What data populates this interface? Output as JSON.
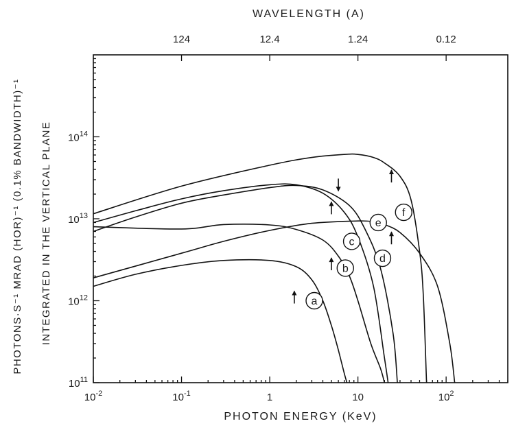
{
  "chart_data": {
    "type": "line",
    "title": "",
    "xlabel": "PHOTON ENERGY (KeV)",
    "ylabel_line1": "PHOTONS·S⁻¹ MRAD (HOR)⁻¹ (0.1% BANDWIDTH)⁻¹",
    "ylabel_line2": "INTEGRATED IN THE VERTICAL PLANE",
    "top_axis_label": "WAVELENGTH (A)",
    "x_scale": "log",
    "y_scale": "log",
    "xlim": [
      0.01,
      500
    ],
    "ylim": [
      100000000000.0,
      1000000000000000.0
    ],
    "grid": false,
    "x_ticks": [
      {
        "value": 0.01,
        "base": "10",
        "exp": "-2"
      },
      {
        "value": 0.1,
        "base": "10",
        "exp": "-1"
      },
      {
        "value": 1,
        "base": "1",
        "exp": ""
      },
      {
        "value": 10,
        "base": "10",
        "exp": ""
      },
      {
        "value": 100,
        "base": "10",
        "exp": "2"
      }
    ],
    "y_ticks": [
      {
        "value": 100000000000.0,
        "base": "10",
        "exp": "11"
      },
      {
        "value": 1000000000000.0,
        "base": "10",
        "exp": "12"
      },
      {
        "value": 10000000000000.0,
        "base": "10",
        "exp": "13"
      },
      {
        "value": 100000000000000.0,
        "base": "10",
        "exp": "14"
      }
    ],
    "top_ticks": [
      {
        "energy": 0.1,
        "label": "124"
      },
      {
        "energy": 1,
        "label": "12.4"
      },
      {
        "energy": 10,
        "label": "1.24"
      },
      {
        "energy": 100,
        "label": "0.12"
      }
    ],
    "series": [
      {
        "name": "a",
        "x": [
          0.01,
          0.03,
          0.1,
          0.3,
          1,
          2,
          3,
          4,
          5,
          6,
          7,
          7.5
        ],
        "y": [
          1500000000000.0,
          2100000000000.0,
          2700000000000.0,
          3100000000000.0,
          3100000000000.0,
          2600000000000.0,
          1800000000000.0,
          1000000000000.0,
          500000000000.0,
          250000000000.0,
          130000000000.0,
          100000000000.0
        ],
        "label_at": [
          3.2,
          1000000000000.0
        ],
        "arrow_at": [
          1.9,
          1100000000000.0
        ]
      },
      {
        "name": "b",
        "x": [
          0.01,
          0.1,
          0.3,
          1,
          2,
          4,
          6,
          8,
          10,
          14,
          18,
          20
        ],
        "y": [
          8000000000000.0,
          7500000000000.0,
          8500000000000.0,
          8400000000000.0,
          7400000000000.0,
          5500000000000.0,
          3500000000000.0,
          2000000000000.0,
          1000000000000.0,
          300000000000.0,
          150000000000.0,
          100000000000.0
        ],
        "label_at": [
          7.2,
          2500000000000.0
        ],
        "arrow_at": [
          5.0,
          2800000000000.0
        ]
      },
      {
        "name": "c",
        "x": [
          0.01,
          0.03,
          0.1,
          0.3,
          1,
          2,
          4,
          7,
          10,
          15,
          20,
          22
        ],
        "y": [
          9000000000000.0,
          12500000000000.0,
          17500000000000.0,
          22000000000000.0,
          26000000000000.0,
          26000000000000.0,
          20500000000000.0,
          12000000000000.0,
          6000000000000.0,
          1500000000000.0,
          200000000000.0,
          100000000000.0
        ],
        "label_at": [
          8.5,
          5300000000000.0
        ],
        "arrow_at": [
          5.0,
          13500000000000.0
        ]
      },
      {
        "name": "d",
        "x": [
          0.01,
          0.03,
          0.1,
          0.3,
          1,
          2,
          4,
          8,
          12,
          18,
          25,
          28
        ],
        "y": [
          7000000000000.0,
          10500000000000.0,
          15500000000000.0,
          19500000000000.0,
          24000000000000.0,
          25500000000000.0,
          22500000000000.0,
          14500000000000.0,
          7500000000000.0,
          2500000000000.0,
          400000000000.0,
          100000000000.0
        ],
        "label_at": [
          19,
          3300000000000.0
        ],
        "arrow_at": [
          6.0,
          26000000000000.0
        ]
      },
      {
        "name": "e",
        "x": [
          0.01,
          0.1,
          0.3,
          1,
          3,
          10,
          15,
          20,
          30,
          50,
          80,
          110,
          125
        ],
        "y": [
          1900000000000.0,
          3800000000000.0,
          5300000000000.0,
          7200000000000.0,
          8800000000000.0,
          9400000000000.0,
          9200000000000.0,
          8500000000000.0,
          6800000000000.0,
          3800000000000.0,
          1500000000000.0,
          300000000000.0,
          100000000000.0
        ],
        "label_at": [
          17,
          9000000000000.0
        ],
        "arrow_at": [
          24,
          5800000000000.0
        ]
      },
      {
        "name": "f",
        "x": [
          0.01,
          0.1,
          1,
          3,
          7,
          10,
          15,
          20,
          30,
          40,
          50,
          55,
          60
        ],
        "y": [
          11500000000000.0,
          25000000000000.0,
          45000000000000.0,
          56000000000000.0,
          61000000000000.0,
          61000000000000.0,
          56000000000000.0,
          48000000000000.0,
          33000000000000.0,
          17000000000000.0,
          4000000000000.0,
          1200000000000.0,
          100000000000.0
        ],
        "label_at": [
          33,
          12000000000000.0
        ],
        "arrow_at": [
          24,
          33000000000000.0
        ]
      }
    ]
  }
}
